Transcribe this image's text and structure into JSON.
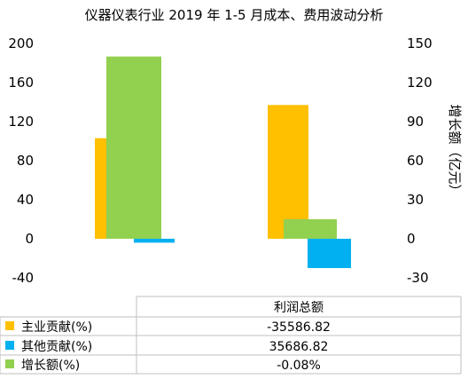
{
  "chart_data": {
    "type": "bar",
    "title": "仪器仪表行业 2019 年 1-5 月成本、费用波动分析",
    "categories": [
      "利润总额"
    ],
    "left_axis": {
      "ylim": [
        -40,
        200
      ],
      "ticks": [
        -40,
        0,
        40,
        80,
        120,
        160,
        200
      ],
      "tick_labels": [
        "-40",
        "0",
        "40",
        "80",
        "120",
        "160",
        "200"
      ]
    },
    "right_axis": {
      "label": "增长额（亿元）",
      "ylim": [
        -30,
        150
      ],
      "ticks": [
        -30,
        0,
        30,
        60,
        90,
        120,
        150
      ],
      "tick_labels": [
        "-30",
        "0",
        "30",
        "60",
        "90",
        "120",
        "150"
      ]
    },
    "groups": [
      {
        "bars": [
          {
            "series": "主业贡献(%)",
            "axis": "left",
            "value": 103
          },
          {
            "series": "其他贡献(%)",
            "axis": "left",
            "value": -4
          },
          {
            "series": "增长额(%)",
            "axis": "right",
            "value": 140
          }
        ]
      },
      {
        "bars": [
          {
            "series": "主业贡献(%)",
            "axis": "left",
            "value": 137
          },
          {
            "series": "其他贡献(%)",
            "axis": "left",
            "value": -30
          },
          {
            "series": "增长额(%)",
            "axis": "right",
            "value": 15
          }
        ]
      }
    ],
    "series": [
      {
        "name": "主业贡献(%)",
        "color": "#FFC000",
        "table_value": "-35586.82"
      },
      {
        "name": "其他贡献(%)",
        "color": "#00B0F0",
        "table_value": "35686.82"
      },
      {
        "name": "增长额(%)",
        "color": "#92D050",
        "table_value": "-0.08%"
      }
    ],
    "table_header": "利润总额",
    "grid": false,
    "legend": "table-bottom"
  }
}
